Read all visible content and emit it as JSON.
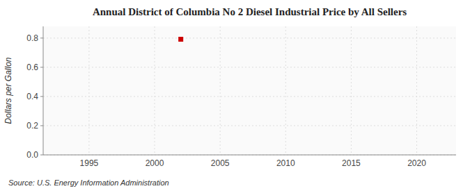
{
  "chart_data": {
    "type": "scatter",
    "title": "Annual District of Columbia No 2 Diesel Industrial Price by All Sellers",
    "ylabel": "Dollars per Gallon",
    "source": "Source: U.S. Energy Information Administration",
    "x": [
      2002
    ],
    "values": [
      0.792
    ],
    "color": "#cc0000",
    "marker": "square",
    "xlim": [
      1991.5,
      2023
    ],
    "ylim": [
      0.0,
      0.88
    ],
    "xticks": [
      1995,
      2000,
      2005,
      2010,
      2015,
      2020
    ],
    "yticks": [
      {
        "value": 0,
        "label": "0.0"
      },
      0.2,
      0.4,
      0.6,
      0.8
    ],
    "grid": true
  }
}
